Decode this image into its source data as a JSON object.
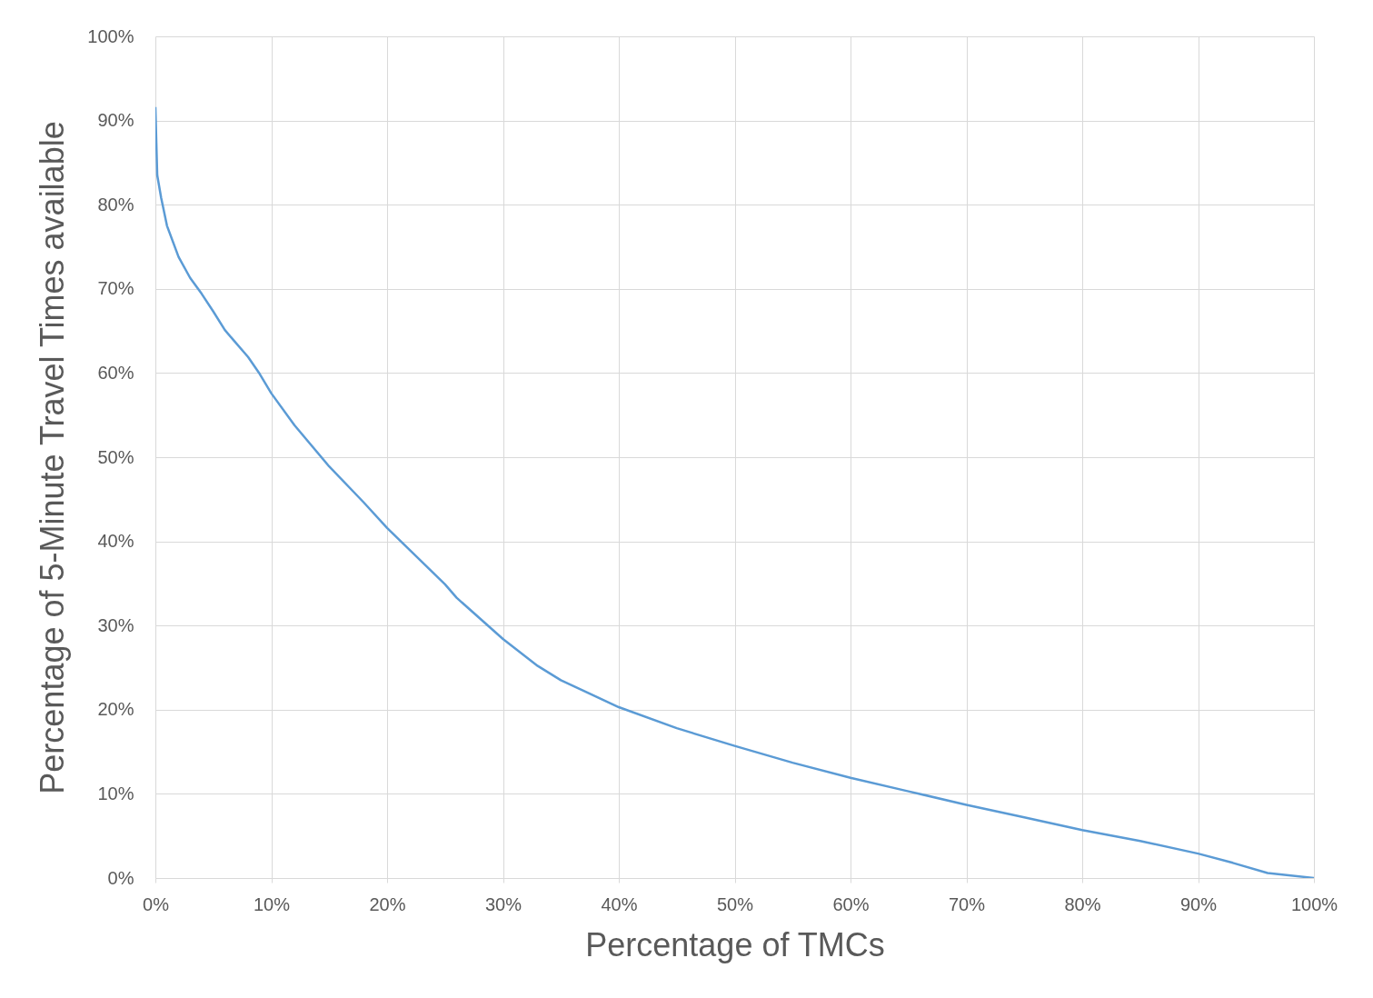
{
  "chart_data": {
    "type": "line",
    "xlabel": "Percentage of TMCs",
    "ylabel": "Percentage of  5-Minute Travel Times available",
    "x": [
      0,
      0.16,
      0.5,
      1,
      2,
      3,
      4,
      5,
      6,
      8,
      9,
      10,
      12,
      15,
      18,
      20,
      25,
      26,
      30,
      33,
      35,
      40,
      45,
      50,
      55,
      60,
      65,
      70,
      75,
      80,
      85,
      90,
      93,
      96,
      100
    ],
    "series": [
      {
        "color": "#5b9bd5",
        "values": [
          91.6,
          83.5,
          80.8,
          77.5,
          73.8,
          71.3,
          69.4,
          67.3,
          65.1,
          61.9,
          59.9,
          57.6,
          53.8,
          48.9,
          44.6,
          41.6,
          34.9,
          33.3,
          28.4,
          25.2,
          23.5,
          20.3,
          17.8,
          15.7,
          13.7,
          11.9,
          10.3,
          8.7,
          7.2,
          5.7,
          4.4,
          2.9,
          1.8,
          0.6,
          0
        ]
      }
    ],
    "xlim": [
      0,
      100
    ],
    "ylim": [
      0,
      100
    ],
    "xticks": [
      {
        "value": 0,
        "label": "0%"
      },
      {
        "value": 10,
        "label": "10%"
      },
      {
        "value": 20,
        "label": "20%"
      },
      {
        "value": 30,
        "label": "30%"
      },
      {
        "value": 40,
        "label": "40%"
      },
      {
        "value": 50,
        "label": "50%"
      },
      {
        "value": 60,
        "label": "60%"
      },
      {
        "value": 70,
        "label": "70%"
      },
      {
        "value": 80,
        "label": "80%"
      },
      {
        "value": 90,
        "label": "90%"
      },
      {
        "value": 100,
        "label": "100%"
      }
    ],
    "yticks": [
      {
        "value": 0,
        "label": "0%"
      },
      {
        "value": 10,
        "label": "10%"
      },
      {
        "value": 20,
        "label": "20%"
      },
      {
        "value": 30,
        "label": "30%"
      },
      {
        "value": 40,
        "label": "40%"
      },
      {
        "value": 50,
        "label": "50%"
      },
      {
        "value": 60,
        "label": "60%"
      },
      {
        "value": 70,
        "label": "70%"
      },
      {
        "value": 80,
        "label": "80%"
      },
      {
        "value": 90,
        "label": "90%"
      },
      {
        "value": 100,
        "label": "100%"
      }
    ],
    "grid": true,
    "marker": "none",
    "line_style": "solid"
  }
}
